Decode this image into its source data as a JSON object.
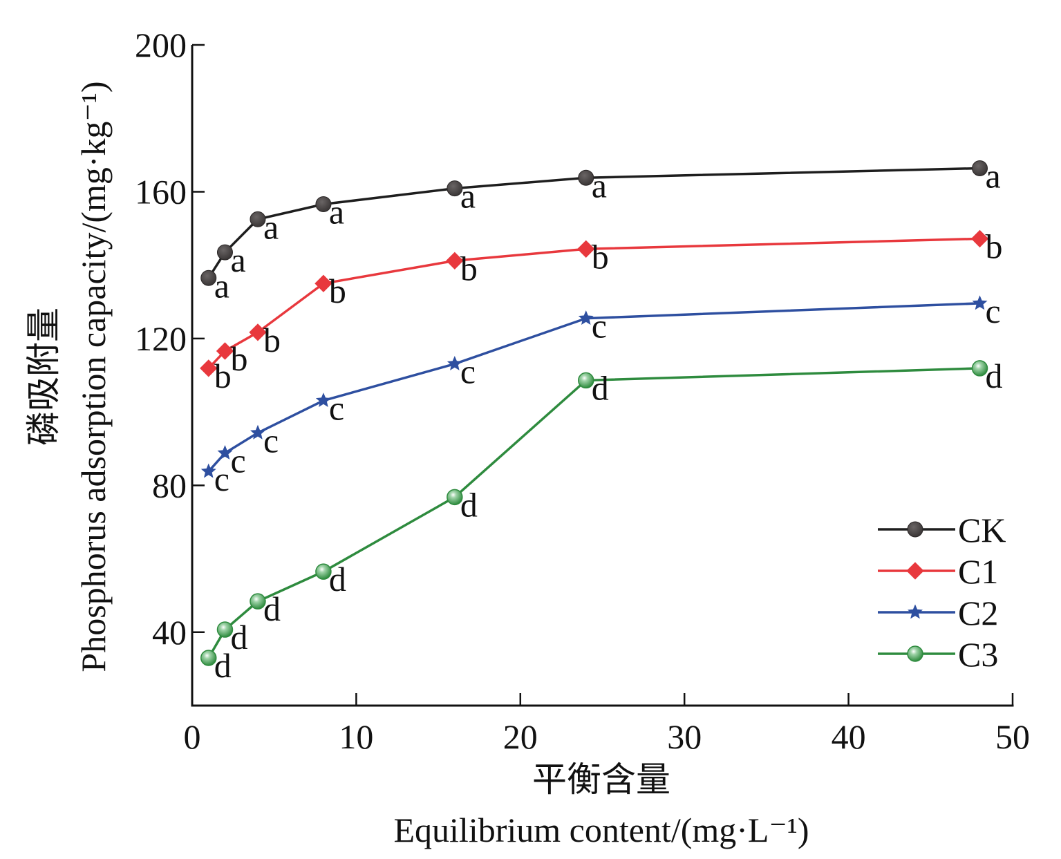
{
  "chart_data": {
    "type": "line",
    "title": "",
    "xlabel_cn": "平衡含量",
    "xlabel": "Equilibrium content/(mg·L⁻¹)",
    "ylabel_cn": "磷吸附量",
    "ylabel": "Phosphorus adsorption capacity/(mg·kg⁻¹)",
    "xlim": [
      0,
      50
    ],
    "ylim": [
      20,
      200
    ],
    "xticks": [
      0,
      10,
      20,
      30,
      40,
      50
    ],
    "xtick_labels": [
      "0",
      "10",
      "20",
      "30",
      "40",
      "50"
    ],
    "yticks": [
      40,
      80,
      120,
      160,
      200
    ],
    "ytick_labels": [
      "40",
      "80",
      "120",
      "160",
      "200"
    ],
    "grid": false,
    "legend_position": "bottom-right",
    "x": [
      1,
      2,
      4,
      8,
      16,
      24,
      48
    ],
    "series": [
      {
        "name": "CK",
        "color": "#1e1e1e",
        "marker_color": "#4b4747",
        "marker": "circle",
        "values": [
          136.5,
          143.5,
          152.5,
          156.6,
          160.9,
          163.8,
          166.4
        ],
        "labels": [
          "a",
          "a",
          "a",
          "a",
          "a",
          "a",
          "a"
        ]
      },
      {
        "name": "C1",
        "color": "#e8383d",
        "marker_color": "#e8383d",
        "marker": "diamond",
        "values": [
          111.9,
          116.6,
          121.7,
          135.0,
          141.2,
          144.4,
          147.2
        ],
        "labels": [
          "b",
          "b",
          "b",
          "b",
          "b",
          "b",
          "b"
        ]
      },
      {
        "name": "C2",
        "color": "#2e4fa0",
        "marker_color": "#2e4fa0",
        "marker": "star",
        "values": [
          83.8,
          88.8,
          94.3,
          103.1,
          113.1,
          125.5,
          129.6
        ],
        "labels": [
          "c",
          "c",
          "c",
          "c",
          "c",
          "c",
          "c"
        ]
      },
      {
        "name": "C3",
        "color": "#2e8b3e",
        "marker_color": "#3a9a4a",
        "marker": "sphere",
        "values": [
          33.0,
          40.7,
          48.4,
          56.5,
          76.8,
          108.6,
          111.9
        ],
        "labels": [
          "d",
          "d",
          "d",
          "d",
          "d",
          "d",
          "d"
        ]
      }
    ]
  }
}
